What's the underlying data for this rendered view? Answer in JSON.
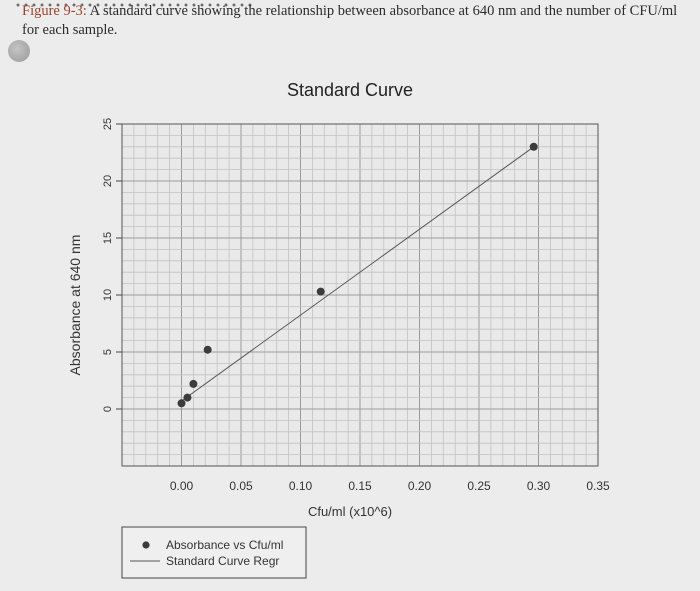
{
  "caption": {
    "figure_label": "Figure 9-3:",
    "text": "A standard curve showing the relationship between absorbance at 640 nm and the number of CFU/ml for each sample."
  },
  "colors": {
    "plot_bg": "#e9e9e9",
    "grid_major": "#9a9a9a",
    "grid_minor": "#c2c2c2",
    "points": "#3c3c3c",
    "regression_line": "#555555",
    "caption_label": "#a1442c"
  },
  "chart_data": {
    "type": "scatter",
    "title": "Standard Curve",
    "xlabel": "Cfu/ml (x10^6)",
    "ylabel": "Absorbance at 640 nm",
    "xlim": [
      -0.05,
      0.35
    ],
    "ylim": [
      -5,
      25
    ],
    "x_ticks": [
      "0.00",
      "0.05",
      "0.10",
      "0.15",
      "0.20",
      "0.25",
      "0.30",
      "0.35"
    ],
    "y_ticks": [
      "0",
      "5",
      "10",
      "15",
      "20",
      "25"
    ],
    "grid": true,
    "legend_position": "bottom-left",
    "series": [
      {
        "name": "Absorbance vs Cfu/ml",
        "type": "scatter",
        "x": [
          0.0,
          0.005,
          0.01,
          0.022,
          0.117,
          0.296
        ],
        "y": [
          0.5,
          1.0,
          2.2,
          5.2,
          10.3,
          23.0
        ]
      },
      {
        "name": "Standard Curve Regr",
        "type": "line",
        "x": [
          0.0,
          0.296
        ],
        "y": [
          0.7,
          23.0
        ]
      }
    ]
  }
}
